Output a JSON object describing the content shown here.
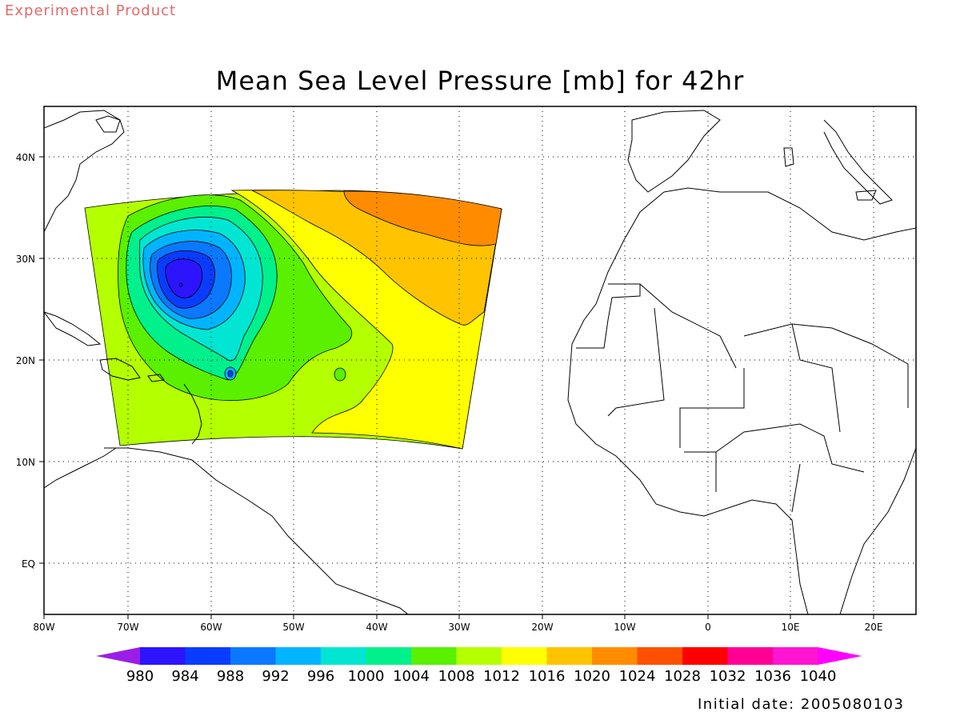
{
  "header": {
    "product_note": "Experimental Product",
    "title": "Mean Sea Level Pressure [mb] for 42hr"
  },
  "footer": {
    "initial_date": "Initial date: 2005080103"
  },
  "map": {
    "lon_range": [
      "80W",
      "25E"
    ],
    "lat_range": [
      "5S",
      "45N"
    ],
    "grid": "dotted",
    "x_tick_labels": [
      "80W",
      "70W",
      "60W",
      "50W",
      "40W",
      "30W",
      "20W",
      "10W",
      "0",
      "10E",
      "20E"
    ],
    "y_tick_labels": [
      "40N",
      "30N",
      "20N",
      "10N",
      "EQ"
    ],
    "contour_field": "mean sea level pressure",
    "low_center": {
      "lon": -63,
      "lat": 28.5
    },
    "secondary_low": {
      "lon": -58,
      "lat": 18.8
    }
  },
  "colorbar": {
    "labels": [
      "980",
      "984",
      "988",
      "992",
      "996",
      "1000",
      "1004",
      "1008",
      "1012",
      "1016",
      "1020",
      "1024",
      "1028",
      "1032",
      "1036",
      "1040"
    ],
    "colors": [
      "#9a1ee6",
      "#2c14ff",
      "#0a3cff",
      "#0a78ff",
      "#00b4ff",
      "#00e6d2",
      "#00f08c",
      "#5af000",
      "#b4ff00",
      "#ffff00",
      "#ffc300",
      "#ff8c00",
      "#ff5000",
      "#ff0000",
      "#ff0096",
      "#ff14d2",
      "#ff00ff"
    ]
  }
}
